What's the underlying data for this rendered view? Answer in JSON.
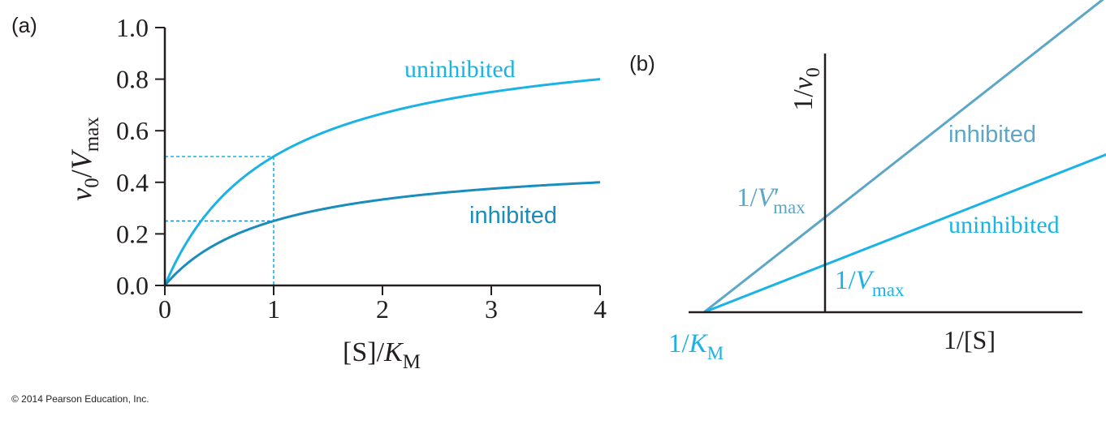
{
  "copyright": "© 2014 Pearson Education, Inc.",
  "colors": {
    "uninhibited": "#1bb3e6",
    "inhibited": "#1a8dbd",
    "inhibited_b": "#5ca7c7",
    "axis": "#231f20"
  },
  "chart_data": [
    {
      "panel_label": "(a)",
      "type": "line",
      "xlabel": {
        "main": "[S]/",
        "italic": "K",
        "sub": "M"
      },
      "ylabel": {
        "italic1": "v",
        "sub1": "0",
        "slash": "/",
        "italic2": "V",
        "sub2": "max"
      },
      "xlim": [
        0,
        4
      ],
      "ylim": [
        0,
        1
      ],
      "xticks": [
        "0",
        "1",
        "2",
        "3",
        "4"
      ],
      "yticks": [
        "0.0",
        "0.2",
        "0.4",
        "0.6",
        "0.8",
        "1.0"
      ],
      "series": [
        {
          "name": "uninhibited",
          "label": "uninhibited",
          "x": [
            0,
            0.05,
            0.1,
            0.2,
            0.3,
            0.5,
            0.75,
            1,
            1.25,
            1.5,
            1.75,
            2,
            2.5,
            3,
            3.5,
            4
          ],
          "y": [
            0,
            0.048,
            0.091,
            0.167,
            0.231,
            0.333,
            0.429,
            0.5,
            0.556,
            0.6,
            0.636,
            0.667,
            0.714,
            0.75,
            0.778,
            0.8
          ]
        },
        {
          "name": "inhibited",
          "label": "inhibited",
          "x": [
            0,
            0.05,
            0.1,
            0.2,
            0.3,
            0.5,
            0.75,
            1,
            1.25,
            1.5,
            1.75,
            2,
            2.5,
            3,
            3.5,
            4
          ],
          "y": [
            0,
            0.024,
            0.045,
            0.083,
            0.115,
            0.167,
            0.214,
            0.25,
            0.278,
            0.3,
            0.318,
            0.333,
            0.357,
            0.375,
            0.389,
            0.4
          ]
        }
      ],
      "guides": [
        {
          "series": "uninhibited",
          "x": 1,
          "y": 0.5
        },
        {
          "series": "inhibited",
          "x": 1,
          "y": 0.25
        }
      ]
    },
    {
      "panel_label": "(b)",
      "type": "line",
      "xlabel": "1/[S]",
      "ylabel": {
        "main": "1/",
        "italic": "v",
        "sub": "0"
      },
      "xlim": [
        -1.5,
        3.2
      ],
      "ylim": [
        0,
        3.1
      ],
      "series": [
        {
          "name": "inhibited",
          "label": "inhibited",
          "intercept_label": {
            "main": "1/",
            "italic": "V",
            "prime": "′",
            "sub": "max"
          },
          "x": [
            -1,
            2.5
          ],
          "y": [
            0,
            3.5
          ]
        },
        {
          "name": "uninhibited",
          "label": "uninhibited",
          "intercept_label": {
            "main": "1/",
            "italic": "V",
            "sub": "max"
          },
          "x": [
            -1,
            3.2
          ],
          "y": [
            0,
            2.1
          ]
        }
      ],
      "x_intercept_label": {
        "main": "1/",
        "italic": "K",
        "sub": "M"
      }
    }
  ]
}
